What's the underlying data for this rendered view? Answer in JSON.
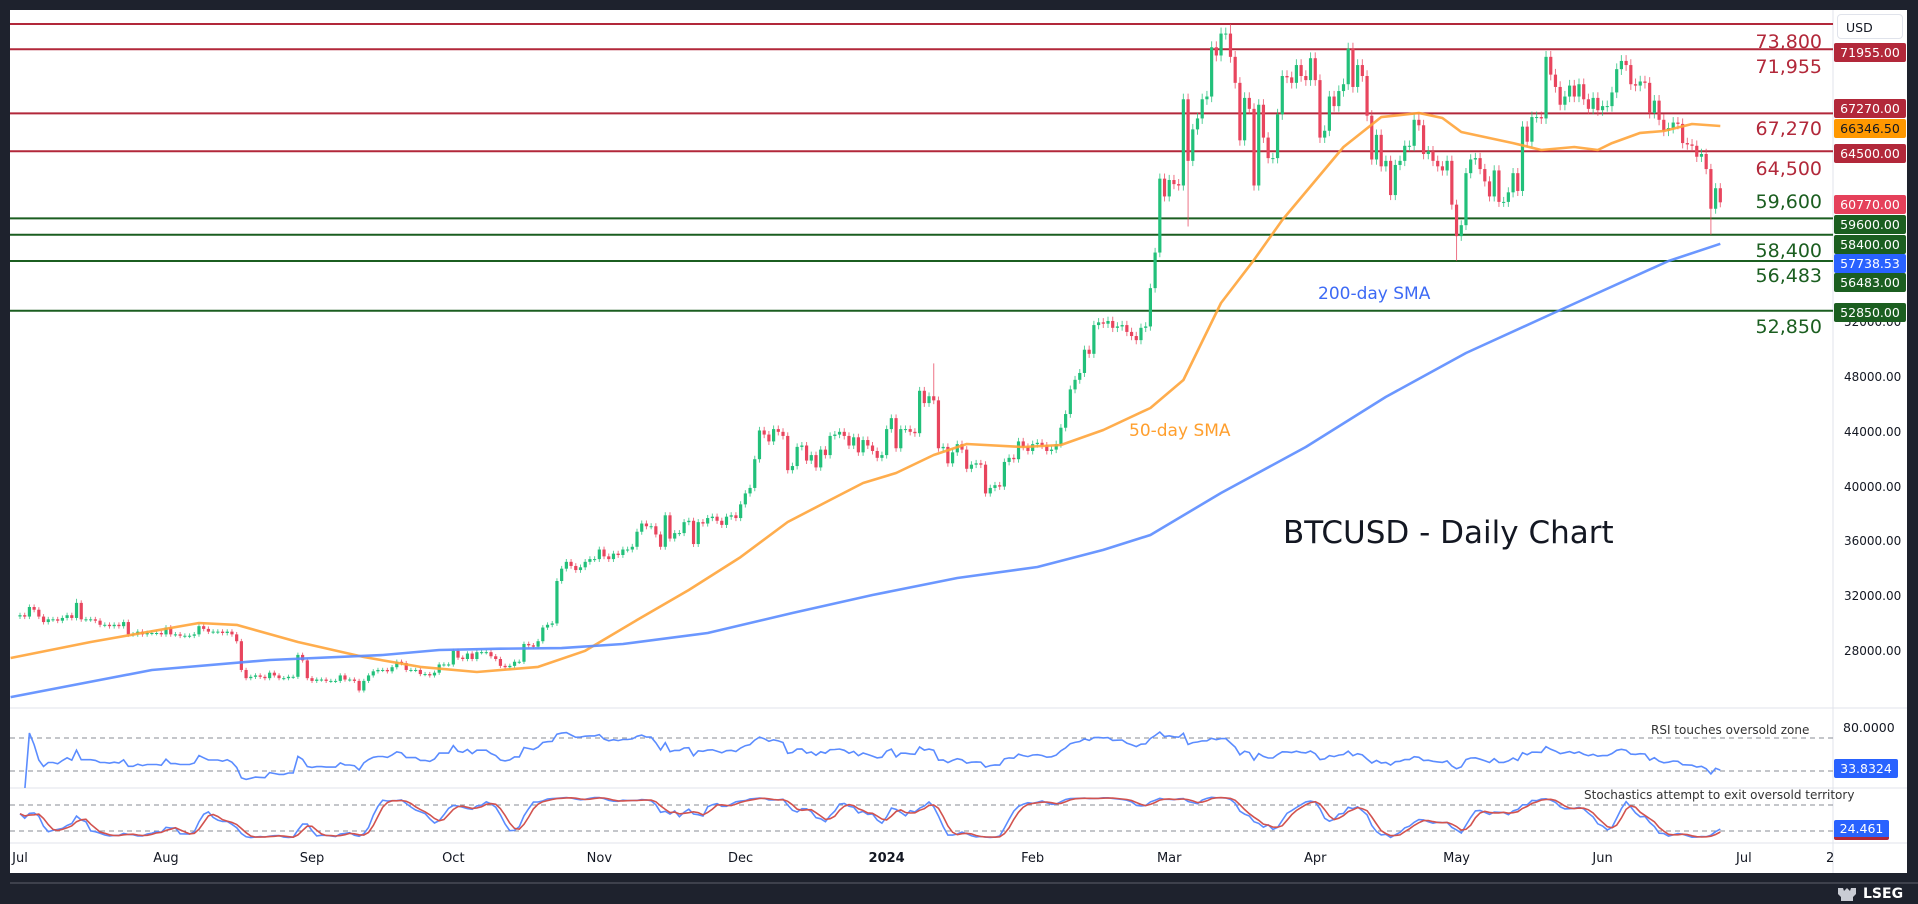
{
  "chart_data": {
    "type": "candlestick",
    "title": "BTCUSD - Daily Chart",
    "currency": "USD",
    "closes_by_month": {
      "2023-07": [
        30600,
        30500,
        31200,
        31000,
        30500,
        30100,
        30300,
        30300,
        30200,
        30400,
        30600,
        30400,
        31500,
        30300,
        30300,
        30300,
        30200,
        29900,
        29900,
        29800,
        29900,
        29800,
        30100,
        29200,
        29200,
        29400,
        29200,
        29300,
        29300,
        29300,
        29200
      ],
      "2023-08": [
        29700,
        29200,
        29200,
        29100,
        29100,
        29100,
        29200,
        29800,
        29600,
        29400,
        29400,
        29400,
        29300,
        29400,
        29200,
        28700,
        26600,
        26000,
        26100,
        26200,
        26100,
        26000,
        26400,
        26200,
        26000,
        26000,
        26100,
        26100,
        27700,
        27300,
        26000
      ],
      "2023-09": [
        25800,
        25900,
        25900,
        25800,
        25800,
        25800,
        26200,
        25900,
        25900,
        25800,
        25100,
        25800,
        26200,
        26500,
        26600,
        26600,
        26500,
        26800,
        27200,
        27100,
        26600,
        26600,
        26600,
        26300,
        26300,
        26200,
        26400,
        27000,
        27000,
        27000
      ],
      "2023-10": [
        28000,
        27500,
        27400,
        27800,
        27400,
        27900,
        27900,
        27900,
        27600,
        27400,
        26900,
        26800,
        26900,
        27200,
        27200,
        28500,
        28400,
        28300,
        28700,
        29700,
        29900,
        30000,
        33100,
        34000,
        34500,
        34200,
        33900,
        34100,
        34500,
        34700,
        34700
      ],
      "2023-11": [
        35400,
        34900,
        34700,
        35100,
        35000,
        35400,
        35400,
        35600,
        36700,
        37300,
        37100,
        37100,
        36500,
        35600,
        37900,
        36200,
        36600,
        36600,
        37400,
        37500,
        35800,
        37400,
        37300,
        37700,
        37800,
        37500,
        37200,
        37800,
        37900,
        37700
      ],
      "2023-12": [
        38700,
        39500,
        39900,
        42000,
        44100,
        43800,
        43300,
        44200,
        44000,
        43700,
        41200,
        41500,
        42900,
        43000,
        41900,
        42300,
        41400,
        42700,
        42300,
        43700,
        43800,
        44000,
        43700,
        43000,
        43600,
        42500,
        43400,
        43000,
        42600,
        42100,
        42300
      ],
      "2024-01": [
        44200,
        45000,
        42800,
        44200,
        44200,
        44000,
        43900,
        47000,
        46100,
        46600,
        46300,
        42800,
        42900,
        41700,
        42500,
        43100,
        42700,
        41300,
        41600,
        41700,
        41600,
        39500,
        39900,
        40100,
        40000,
        41800,
        42100,
        42000,
        43300,
        42900,
        42600
      ],
      "2024-02": [
        43100,
        43200,
        43000,
        42600,
        42700,
        43100,
        44300,
        45300,
        47100,
        47800,
        48300,
        50000,
        49700,
        51800,
        52000,
        51900,
        52100,
        51600,
        51700,
        51800,
        51300,
        51000,
        50700,
        51600,
        51700,
        54500,
        57100,
        62500,
        61200
      ],
      "2024-03": [
        62400,
        62100,
        62000,
        68300,
        63800,
        66100,
        66900,
        68300,
        68500,
        72100,
        71500,
        73100,
        73100,
        71400,
        69500,
        65300,
        68400,
        67600,
        62000,
        67900,
        65500,
        64000,
        64000,
        67200,
        70000,
        69900,
        69500,
        70800,
        70000,
        69700,
        71300
      ],
      "2024-04": [
        69700,
        65500,
        66000,
        68500,
        67800,
        68900,
        69400,
        72000,
        69200,
        70800,
        70000,
        67100,
        63900,
        65700,
        63400,
        63800,
        61300,
        63500,
        63800,
        64900,
        64900,
        66800,
        66400,
        64300,
        64500,
        63800,
        63400,
        63100,
        63800,
        60600
      ],
      "2024-05": [
        58300,
        59100,
        62900,
        63900,
        64000,
        63200,
        62300,
        61200,
        63100,
        60800,
        60800,
        61500,
        62900,
        61600,
        66300,
        65200,
        67000,
        67000,
        66900,
        71400,
        70100,
        69200,
        67900,
        68500,
        69300,
        68500,
        69400,
        68300,
        67600,
        68400,
        67500
      ],
      "2024-06": [
        67800,
        67800,
        68800,
        70500,
        71100,
        70800,
        69400,
        69300,
        69600,
        69500,
        67300,
        68200,
        66800,
        66000,
        66200,
        66600,
        66500,
        65100,
        65000,
        64900,
        64100,
        64300,
        63200,
        60300,
        61800,
        60770
      ]
    },
    "extremes": [
      {
        "date": "2023-07-13",
        "high": 31800
      },
      {
        "date": "2024-01-11",
        "high": 49000
      },
      {
        "date": "2024-03-05",
        "low": 59000
      },
      {
        "date": "2024-03-14",
        "high": 73800
      },
      {
        "date": "2024-05-01",
        "low": 56500
      },
      {
        "date": "2024-06-24",
        "low": 58400
      }
    ],
    "sma50": {
      "name": "50-day SMA",
      "points": [
        [
          "2023-06-29",
          27470
        ],
        [
          "2023-07-16",
          28640
        ],
        [
          "2023-08-08",
          30030
        ],
        [
          "2023-08-16",
          29890
        ],
        [
          "2023-08-29",
          28640
        ],
        [
          "2023-09-12",
          27550
        ],
        [
          "2023-09-24",
          26820
        ],
        [
          "2023-10-06",
          26450
        ],
        [
          "2023-10-19",
          26820
        ],
        [
          "2023-10-29",
          28000
        ],
        [
          "2023-11-09",
          30250
        ],
        [
          "2023-11-20",
          32440
        ],
        [
          "2023-12-01",
          34850
        ],
        [
          "2023-12-11",
          37410
        ],
        [
          "2023-12-20",
          39020
        ],
        [
          "2023-12-27",
          40260
        ],
        [
          "2024-01-03",
          40990
        ],
        [
          "2024-01-11",
          42310
        ],
        [
          "2024-01-18",
          43110
        ],
        [
          "2024-01-30",
          42890
        ],
        [
          "2024-02-07",
          43040
        ],
        [
          "2024-02-16",
          44130
        ],
        [
          "2024-02-26",
          45740
        ],
        [
          "2024-03-04",
          47790
        ],
        [
          "2024-03-12",
          53410
        ],
        [
          "2024-03-19",
          56560
        ],
        [
          "2024-03-25",
          59480
        ],
        [
          "2024-04-07",
          64810
        ],
        [
          "2024-04-15",
          67000
        ],
        [
          "2024-04-23",
          67300
        ],
        [
          "2024-04-28",
          66930
        ],
        [
          "2024-05-02",
          65910
        ],
        [
          "2024-05-13",
          65100
        ],
        [
          "2024-05-19",
          64590
        ],
        [
          "2024-05-26",
          64810
        ],
        [
          "2024-05-31",
          64590
        ],
        [
          "2024-06-03",
          65100
        ],
        [
          "2024-06-09",
          65840
        ],
        [
          "2024-06-14",
          65980
        ],
        [
          "2024-06-20",
          66490
        ],
        [
          "2024-06-26",
          66346.5
        ]
      ]
    },
    "sma200": {
      "name": "200-day SMA",
      "points": [
        [
          "2023-06-29",
          24620
        ],
        [
          "2023-07-29",
          26600
        ],
        [
          "2023-08-23",
          27330
        ],
        [
          "2023-09-16",
          27690
        ],
        [
          "2023-09-28",
          28060
        ],
        [
          "2023-10-11",
          28150
        ],
        [
          "2023-10-24",
          28200
        ],
        [
          "2023-11-06",
          28500
        ],
        [
          "2023-11-24",
          29300
        ],
        [
          "2023-12-12",
          30760
        ],
        [
          "2023-12-29",
          32080
        ],
        [
          "2024-01-16",
          33320
        ],
        [
          "2024-02-02",
          34120
        ],
        [
          "2024-02-16",
          35370
        ],
        [
          "2024-02-26",
          36460
        ],
        [
          "2024-03-12",
          39530
        ],
        [
          "2024-03-30",
          42890
        ],
        [
          "2024-04-16",
          46550
        ],
        [
          "2024-05-03",
          49760
        ],
        [
          "2024-05-23",
          52900
        ],
        [
          "2024-06-15",
          56480
        ],
        [
          "2024-06-26",
          57738.53
        ]
      ]
    },
    "levels": [
      {
        "value": 73800,
        "label": "73,800",
        "kind": "resistance"
      },
      {
        "value": 71955,
        "label": "71,955",
        "kind": "resistance"
      },
      {
        "value": 67270,
        "label": "67,270",
        "kind": "resistance"
      },
      {
        "value": 64500,
        "label": "64,500",
        "kind": "resistance"
      },
      {
        "value": 59600,
        "label": "59,600",
        "kind": "support"
      },
      {
        "value": 58400,
        "label": "58,400",
        "kind": "support"
      },
      {
        "value": 56483,
        "label": "56,483",
        "kind": "support"
      },
      {
        "value": 52850,
        "label": "52,850",
        "kind": "support"
      }
    ],
    "price_tags": [
      {
        "text": "71955.00",
        "kind": "resistance"
      },
      {
        "text": "67270.00",
        "kind": "resistance"
      },
      {
        "text": "66346.50",
        "kind": "sma50"
      },
      {
        "text": "64500.00",
        "kind": "resistance"
      },
      {
        "text": "60770.00",
        "kind": "last"
      },
      {
        "text": "59600.00",
        "kind": "support"
      },
      {
        "text": "58400.00",
        "kind": "support"
      },
      {
        "text": "57738.53",
        "kind": "sma200"
      },
      {
        "text": "56483.00",
        "kind": "support"
      },
      {
        "text": "52850.00",
        "kind": "support"
      }
    ],
    "y_ticks": [
      {
        "value": 52000,
        "label": "52000.00"
      },
      {
        "value": 48000,
        "label": "48000.00"
      },
      {
        "value": 44000,
        "label": "44000.00"
      },
      {
        "value": 40000,
        "label": "40000.00"
      },
      {
        "value": 36000,
        "label": "36000.00"
      },
      {
        "value": 32000,
        "label": "32000.00"
      },
      {
        "value": 28000,
        "label": "28000.00"
      }
    ],
    "x_ticks": [
      {
        "date": "2023-07-01",
        "label": "Jul"
      },
      {
        "date": "2023-08-01",
        "label": "Aug"
      },
      {
        "date": "2023-09-01",
        "label": "Sep"
      },
      {
        "date": "2023-10-01",
        "label": "Oct"
      },
      {
        "date": "2023-11-01",
        "label": "Nov"
      },
      {
        "date": "2023-12-01",
        "label": "Dec"
      },
      {
        "date": "2024-01-01",
        "label": "2024",
        "bold": true
      },
      {
        "date": "2024-02-01",
        "label": "Feb"
      },
      {
        "date": "2024-03-01",
        "label": "Mar"
      },
      {
        "date": "2024-04-01",
        "label": "Apr"
      },
      {
        "date": "2024-05-01",
        "label": "May"
      },
      {
        "date": "2024-06-01",
        "label": "Jun"
      },
      {
        "date": "2024-07-01",
        "label": "Jul"
      },
      {
        "date": "2024-07-20",
        "label": "2"
      }
    ],
    "rsi": {
      "levels": [
        80,
        30
      ],
      "axis_label": "80.0000",
      "last": "33.8324",
      "annotation": "RSI touches oversold zone"
    },
    "stochastics": {
      "levels": [
        80,
        20
      ],
      "last": "24.461",
      "annotation": "Stochastics attempt to exit oversold territory"
    },
    "annotations": {
      "sma50": "50-day SMA",
      "sma200": "200-day SMA"
    }
  },
  "colors": {
    "up": "#22c07a",
    "down": "#e8455e",
    "resistance": "#b2283a",
    "support": "#1b5e20",
    "sma50": "#ffa43a",
    "sma200": "#5b8cff",
    "last": "#e5405a",
    "tag_blue": "#2962ff",
    "stoch_d": "#d2534f"
  },
  "logo": {
    "text": "LSEG"
  }
}
